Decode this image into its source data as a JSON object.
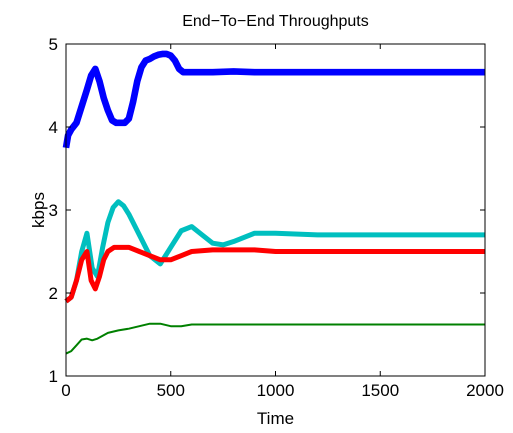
{
  "chart_data": {
    "type": "line",
    "title": "End−To−End Throughputs",
    "xlabel": "Time",
    "ylabel": "kbps",
    "xlim": [
      0,
      2000
    ],
    "ylim": [
      1,
      5
    ],
    "xticks": [
      0,
      500,
      1000,
      1500,
      2000
    ],
    "yticks": [
      1,
      2,
      3,
      4,
      5
    ],
    "xtick_labels": [
      "0",
      "500",
      "1000",
      "1500",
      "2000"
    ],
    "ytick_labels": [
      "1",
      "2",
      "3",
      "4",
      "5"
    ],
    "grid": false,
    "series": [
      {
        "color": "#0000ff",
        "band": 0.08,
        "x": [
          0,
          10,
          25,
          50,
          75,
          100,
          120,
          140,
          160,
          180,
          200,
          220,
          240,
          260,
          280,
          300,
          320,
          340,
          360,
          380,
          400,
          420,
          440,
          460,
          480,
          500,
          520,
          540,
          560,
          600,
          700,
          800,
          900,
          1000,
          1200,
          1500,
          2000
        ],
        "y": [
          3.75,
          3.9,
          3.97,
          4.05,
          4.25,
          4.45,
          4.62,
          4.7,
          4.55,
          4.35,
          4.2,
          4.08,
          4.05,
          4.05,
          4.05,
          4.1,
          4.3,
          4.55,
          4.72,
          4.8,
          4.82,
          4.85,
          4.87,
          4.88,
          4.88,
          4.86,
          4.8,
          4.7,
          4.66,
          4.66,
          4.66,
          4.67,
          4.66,
          4.66,
          4.66,
          4.66,
          4.66
        ]
      },
      {
        "color": "#00bfbf",
        "band": 0.06,
        "x": [
          0,
          25,
          50,
          75,
          100,
          125,
          150,
          175,
          200,
          225,
          250,
          275,
          300,
          350,
          400,
          450,
          500,
          550,
          600,
          650,
          700,
          750,
          800,
          900,
          1000,
          1200,
          1400,
          1600,
          1800,
          2000
        ],
        "y": [
          1.9,
          1.95,
          2.15,
          2.5,
          2.72,
          2.3,
          2.2,
          2.55,
          2.85,
          3.03,
          3.1,
          3.05,
          2.95,
          2.7,
          2.45,
          2.35,
          2.55,
          2.75,
          2.8,
          2.7,
          2.6,
          2.58,
          2.62,
          2.72,
          2.72,
          2.7,
          2.7,
          2.7,
          2.7,
          2.7
        ]
      },
      {
        "color": "#ff0000",
        "band": 0.06,
        "x": [
          0,
          25,
          50,
          75,
          100,
          120,
          140,
          160,
          180,
          200,
          230,
          260,
          300,
          350,
          400,
          450,
          500,
          550,
          600,
          700,
          800,
          900,
          1000,
          1200,
          1500,
          2000
        ],
        "y": [
          1.9,
          1.95,
          2.15,
          2.4,
          2.5,
          2.15,
          2.05,
          2.2,
          2.4,
          2.5,
          2.55,
          2.55,
          2.55,
          2.5,
          2.45,
          2.4,
          2.4,
          2.45,
          2.5,
          2.52,
          2.52,
          2.52,
          2.5,
          2.5,
          2.5,
          2.5
        ]
      },
      {
        "color": "#008000",
        "band": 0.02,
        "x": [
          0,
          25,
          50,
          75,
          100,
          125,
          150,
          200,
          250,
          300,
          350,
          400,
          450,
          500,
          550,
          600,
          700,
          800,
          1000,
          1500,
          2000
        ],
        "y": [
          1.27,
          1.3,
          1.37,
          1.44,
          1.45,
          1.43,
          1.45,
          1.52,
          1.55,
          1.57,
          1.6,
          1.63,
          1.63,
          1.6,
          1.6,
          1.62,
          1.62,
          1.62,
          1.62,
          1.62,
          1.62
        ]
      }
    ]
  }
}
